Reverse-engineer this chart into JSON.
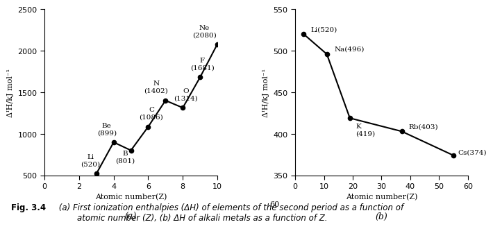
{
  "plot_a": {
    "x": [
      3,
      4,
      5,
      6,
      7,
      8,
      9,
      10
    ],
    "y": [
      520,
      899,
      801,
      1086,
      1402,
      1314,
      1681,
      2080
    ],
    "xlabel": "Atomic number(Z)",
    "ylabel": "ΔᴵH/kJ mol⁻¹",
    "subtitle": "(a)",
    "xlim": [
      0,
      10
    ],
    "ylim": [
      500,
      2500
    ],
    "xticks": [
      0,
      2,
      4,
      6,
      8,
      10
    ],
    "yticks": [
      500,
      1000,
      1500,
      2000,
      2500
    ],
    "label_texts": [
      "Li\n(520)",
      "Be\n(899)",
      "B\n(801)",
      "C\n(1086)",
      "N\n(1402)",
      "O\n(1314)",
      "F\n(1681)",
      "Ne\n(2080)"
    ],
    "label_dx": [
      -0.35,
      -0.4,
      -0.35,
      0.18,
      -0.55,
      0.18,
      0.12,
      -0.75
    ],
    "label_dy": [
      80,
      80,
      -160,
      80,
      80,
      80,
      80,
      70
    ],
    "label_ha": [
      "center",
      "center",
      "center",
      "center",
      "center",
      "center",
      "center",
      "center"
    ]
  },
  "plot_b": {
    "x": [
      3,
      11,
      19,
      37,
      55
    ],
    "y": [
      520,
      496,
      419,
      403,
      374
    ],
    "xlabel": "Atomic number(Z)",
    "ylabel": "ΔᴵH/kJ mol⁻¹",
    "subtitle": "(b)",
    "xlim": [
      0,
      60
    ],
    "ylim": [
      350,
      550
    ],
    "xticks": [
      0,
      10,
      20,
      30,
      40,
      50,
      60
    ],
    "yticks": [
      350,
      400,
      450,
      500,
      550
    ],
    "label_texts": [
      "Li(520)",
      "Na(496)",
      "K\n(419)",
      "Rb(403)",
      "Cs(374)"
    ],
    "label_dx": [
      2.5,
      2.5,
      2.0,
      2.5,
      1.5
    ],
    "label_dy": [
      6,
      6,
      -14,
      6,
      4
    ],
    "label_ha": [
      "left",
      "left",
      "left",
      "left",
      "left"
    ]
  },
  "figure_caption_bold": "Fig. 3.4",
  "figure_caption_normal": " (a) First ionization enthalpies (ΔH) of elements of the second period as a function of\n        atomic number (Z), (b) ΔH of alkali metals as a function of Z.",
  "bg_color": "#ffffff",
  "line_color": "#000000",
  "marker_color": "#000000"
}
